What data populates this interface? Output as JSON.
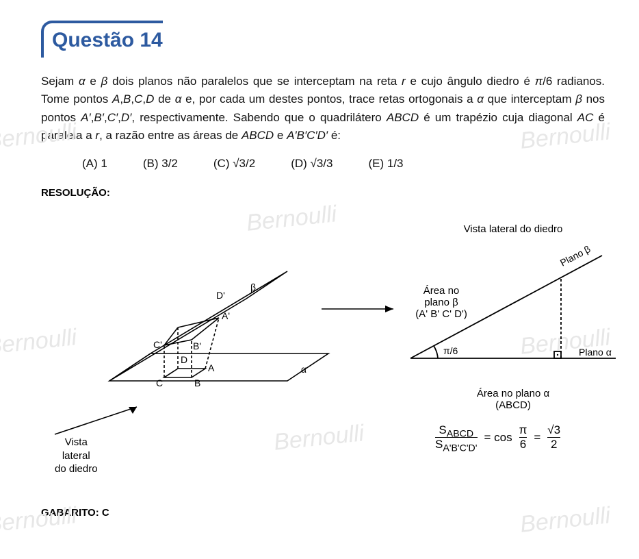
{
  "watermark": "Bernoulli",
  "question": {
    "title": "Questão 14",
    "stem_html": "Sejam <i>α</i> e <i>β</i> dois planos não paralelos que se interceptam na reta <i>r</i> e cujo ângulo diedro é <i>π</i>/6 radianos. Tome pontos <i>A</i>,<i>B</i>,<i>C</i>,<i>D</i> de <i>α</i> e, por cada um destes pontos, trace retas ortogonais a <i>α</i> que interceptam <i>β</i> nos pontos <i>A′</i>,<i>B′</i>,<i>C′</i>,<i>D′</i>, respectivamente. Sabendo que o quadrilátero <i>ABCD</i> é um trapézio cuja diagonal <i>AC</i> é paralela a <i>r</i>, a razão entre as áreas de <i>ABCD</i> e <i>A′B′C′D′</i> é:",
    "options": {
      "A": "1",
      "B": "3/2",
      "C": "√3/2",
      "D": "√3/3",
      "E": "1/3"
    }
  },
  "labels": {
    "resolucao": "RESOLUÇÃO:",
    "gabarito": "GABARITO: C",
    "vista_lateral": "Vista lateral do diedro",
    "vista_lateral_break": "Vista\nlateral\ndo diedro",
    "area_beta_l1": "Área no",
    "area_beta_l2": "plano β",
    "area_beta_l3": "(A' B' C' D')",
    "area_alpha_l1": "Área no plano α",
    "area_alpha_l2": "(ABCD)",
    "plano_alpha": "Plano α",
    "plano_beta": "Plano β",
    "alpha": "α",
    "beta": "β",
    "angle": "π/6",
    "pts": {
      "A": "A",
      "B": "B",
      "C": "C",
      "D": "D",
      "Ap": "A'",
      "Bp": "B'",
      "Cp": "C'",
      "Dp": "D'"
    }
  },
  "ratio": {
    "num": "S",
    "num_sub": "ABCD",
    "den": "S",
    "den_sub": "A'B'C'D'",
    "eq1": "= cos",
    "pi": "π",
    "six": "6",
    "eq2": "=",
    "root3": "√3",
    "two": "2"
  },
  "style": {
    "title_color": "#2d5aa0",
    "text_color": "#111111",
    "watermark_color": "#e7e7e7",
    "line_color": "#000000",
    "title_fontsize": 30,
    "body_fontsize": 17,
    "label_fontsize": 15,
    "background": "#ffffff"
  }
}
